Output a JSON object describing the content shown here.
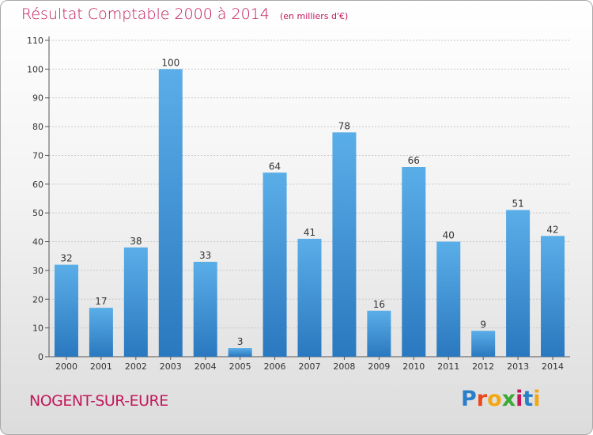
{
  "header": {
    "title": "Résultat Comptable 2000 à 2014",
    "unit": "(en milliers d'€)"
  },
  "footer": {
    "commune": "NOGENT-SUR-EURE",
    "logo_letters": [
      "P",
      "r",
      "o",
      "x",
      "i",
      "t",
      "i"
    ]
  },
  "colors": {
    "bar_top": "#5aaee8",
    "bar_bottom": "#2a78bf",
    "title": "#c2185b",
    "grid": "#c8c8c8"
  },
  "chart_data": {
    "type": "bar",
    "title": "Résultat Comptable 2000 à 2014",
    "subtitle": "(en milliers d'€)",
    "xlabel": "",
    "ylabel": "",
    "categories": [
      "2000",
      "2001",
      "2002",
      "2003",
      "2004",
      "2005",
      "2006",
      "2007",
      "2008",
      "2009",
      "2010",
      "2011",
      "2012",
      "2013",
      "2014"
    ],
    "values": [
      32,
      17,
      38,
      100,
      33,
      3,
      64,
      41,
      78,
      16,
      66,
      40,
      9,
      51,
      42
    ],
    "data_labels": [
      "32",
      "17",
      "38",
      "100",
      "33",
      "3",
      "64",
      "41",
      "78",
      "16",
      "66",
      "40",
      "9",
      "51",
      "42"
    ],
    "ylim": [
      0,
      110
    ],
    "yticks": [
      "0",
      "10",
      "20",
      "30",
      "40",
      "50",
      "60",
      "70",
      "80",
      "90",
      "100",
      "110"
    ],
    "grid": true,
    "legend": "none"
  }
}
